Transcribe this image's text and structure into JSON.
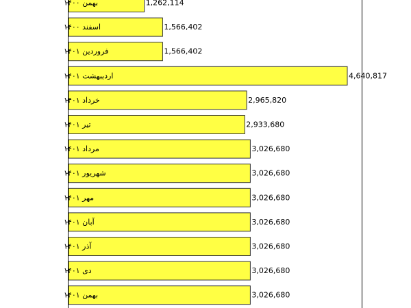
{
  "chart_data": {
    "type": "bar",
    "orientation": "horizontal",
    "categories": [
      "بهمن ۱۴۰۰",
      "اسفند ۱۴۰۰",
      "فروردین ۱۴۰۱",
      "اردیبهشت ۱۴۰۱",
      "خرداد ۱۴۰۱",
      "تیر ۱۴۰۱",
      "مرداد ۱۴۰۱",
      "شهریور ۱۴۰۱",
      "مهر ۱۴۰۱",
      "آبان ۱۴۰۱",
      "آذر ۱۴۰۱",
      "دی ۱۴۰۱",
      "بهمن ۱۴۰۱"
    ],
    "values": [
      1262114,
      1566402,
      1566402,
      4640817,
      2965820,
      2933680,
      3026680,
      3026680,
      3026680,
      3026680,
      3026680,
      3026680,
      3026680
    ],
    "value_labels": [
      "1,262,114",
      "1,566,402",
      "1,566,402",
      "4,640,817",
      "2,965,820",
      "2,933,680",
      "3,026,680",
      "3,026,680",
      "3,026,680",
      "3,026,680",
      "3,026,680",
      "3,026,680",
      "3,026,680"
    ],
    "bar_color": "#ffff44",
    "bar_edge_color": "#333333",
    "grid": false,
    "title": "",
    "xlabel": "",
    "ylabel": ""
  }
}
